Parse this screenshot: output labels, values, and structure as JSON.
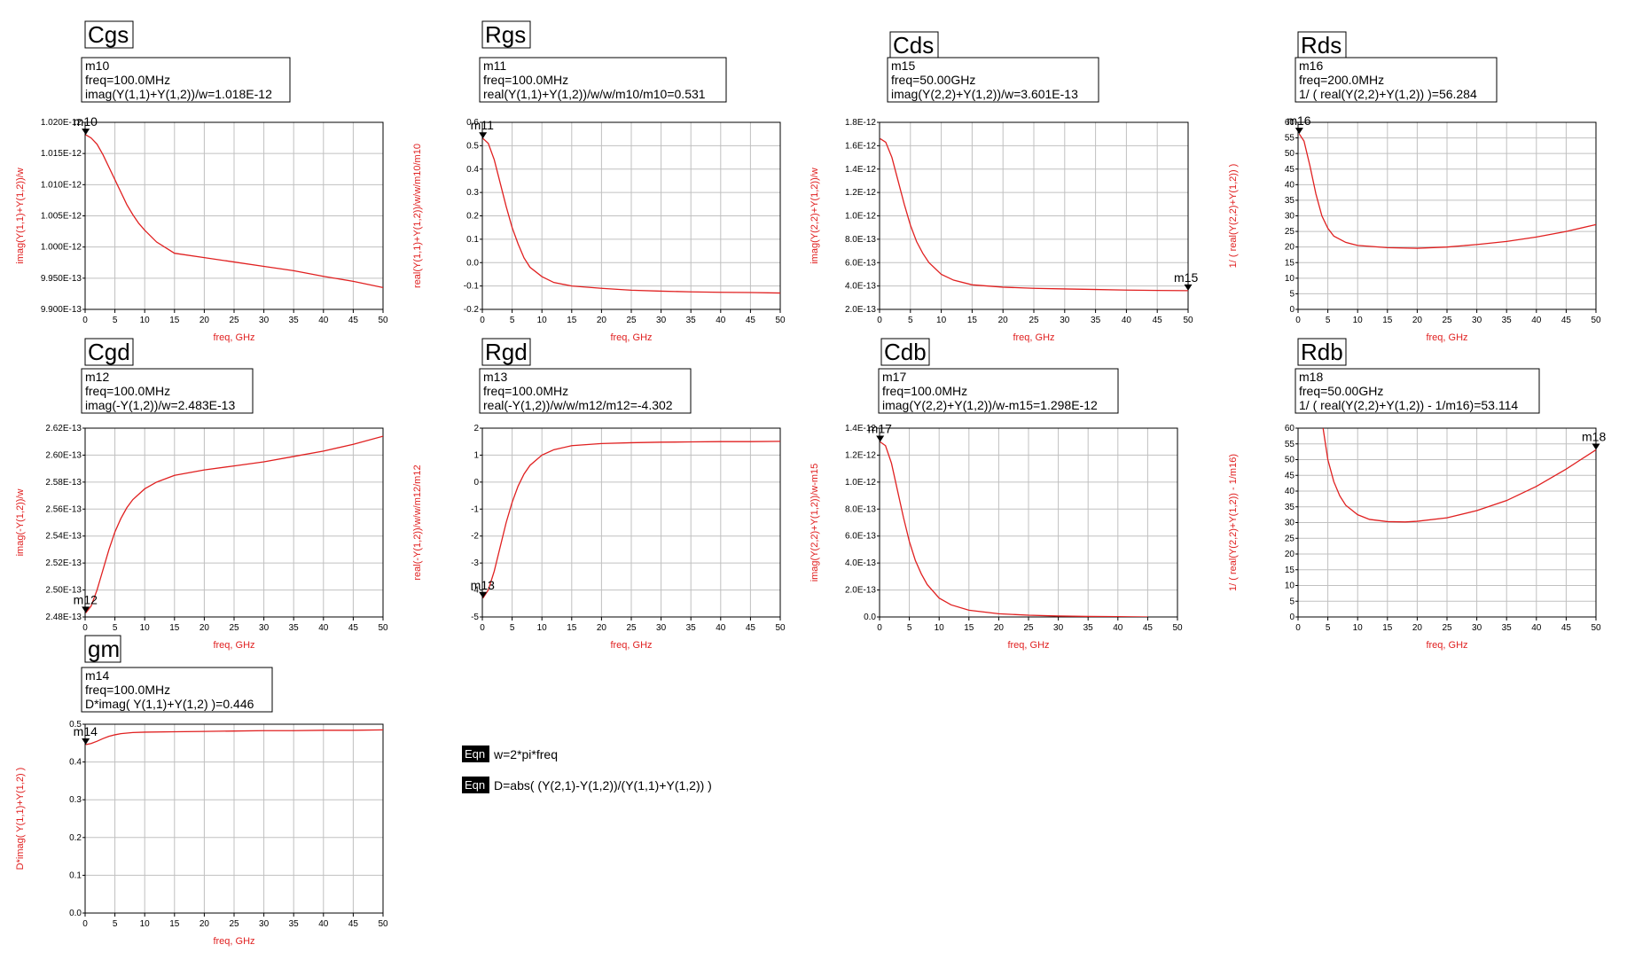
{
  "colors": {
    "curve": "#e02020",
    "grid": "#c0c0c0",
    "axis": "#000000",
    "label": "#e02020"
  },
  "equations": [
    {
      "tag": "Eqn",
      "text": "w=2*pi*freq"
    },
    {
      "tag": "Eqn",
      "text": "D=abs( (Y(2,1)-Y(1,2))/(Y(1,1)+Y(1,2)) )"
    }
  ],
  "chart_data": [
    {
      "id": "cgs",
      "type": "line",
      "title": "Cgs",
      "marker_box": [
        "m10",
        "freq=100.0MHz",
        "imag(Y(1,1)+Y(1,2))/w=1.018E-12"
      ],
      "xlabel": "freq, GHz",
      "ylabel": "imag(Y(1,1)+Y(1,2))/w",
      "xlim": [
        0,
        50
      ],
      "xticks": [
        0,
        5,
        10,
        15,
        20,
        25,
        30,
        35,
        40,
        45,
        50
      ],
      "ylim": [
        9.9e-13,
        1.02e-12
      ],
      "yticks": [
        9.9e-13,
        9.95e-13,
        1e-12,
        1.005e-12,
        1.01e-12,
        1.015e-12,
        1.02e-12
      ],
      "ytick_labels": [
        "9.900E-13",
        "9.950E-13",
        "1.000E-12",
        "1.005E-12",
        "1.010E-12",
        "1.015E-12",
        "1.020E-12"
      ],
      "marker": {
        "name": "m10",
        "x": 0.1,
        "y": 1.018e-12
      },
      "series": [
        {
          "name": "Cgs",
          "x": [
            0.1,
            1,
            2,
            3,
            4,
            5,
            6,
            7,
            8,
            9,
            10,
            12,
            15,
            20,
            25,
            30,
            35,
            40,
            45,
            50
          ],
          "y": [
            1.018e-12,
            1.0175e-12,
            1.0165e-12,
            1.0148e-12,
            1.0128e-12,
            1.0108e-12,
            1.0088e-12,
            1.0068e-12,
            1.0052e-12,
            1.0038e-12,
            1.0027e-12,
            1.0008e-12,
            9.99e-13,
            9.983e-13,
            9.976e-13,
            9.969e-13,
            9.962e-13,
            9.953e-13,
            9.945e-13,
            9.935e-13
          ]
        }
      ]
    },
    {
      "id": "rgs",
      "type": "line",
      "title": "Rgs",
      "marker_box": [
        "m11",
        "freq=100.0MHz",
        "real(Y(1,1)+Y(1,2))/w/w/m10/m10=0.531"
      ],
      "xlabel": "freq, GHz",
      "ylabel": "real(Y(1,1)+Y(1,2))/w/w/m10/m10",
      "xlim": [
        0,
        50
      ],
      "xticks": [
        0,
        5,
        10,
        15,
        20,
        25,
        30,
        35,
        40,
        45,
        50
      ],
      "ylim": [
        -0.2,
        0.6
      ],
      "yticks": [
        -0.2,
        -0.1,
        0.0,
        0.1,
        0.2,
        0.3,
        0.4,
        0.5,
        0.6
      ],
      "ytick_labels": [
        "-0.2",
        "-0.1",
        "0.0",
        "0.1",
        "0.2",
        "0.3",
        "0.4",
        "0.5",
        "0.6"
      ],
      "marker": {
        "name": "m11",
        "x": 0.1,
        "y": 0.531
      },
      "series": [
        {
          "name": "Rgs",
          "x": [
            0.1,
            1,
            2,
            3,
            4,
            5,
            6,
            7,
            8,
            10,
            12,
            15,
            20,
            25,
            30,
            35,
            40,
            45,
            50
          ],
          "y": [
            0.531,
            0.51,
            0.44,
            0.34,
            0.24,
            0.15,
            0.08,
            0.02,
            -0.02,
            -0.06,
            -0.085,
            -0.1,
            -0.11,
            -0.118,
            -0.122,
            -0.125,
            -0.127,
            -0.128,
            -0.13
          ]
        }
      ]
    },
    {
      "id": "cds",
      "type": "line",
      "title": "Cds",
      "marker_box": [
        "m15",
        "freq=50.00GHz",
        "imag(Y(2,2)+Y(1,2))/w=3.601E-13"
      ],
      "xlabel": "freq, GHz",
      "ylabel": "imag(Y(2,2)+Y(1,2))/w",
      "xlim": [
        0,
        50
      ],
      "xticks": [
        0,
        5,
        10,
        15,
        20,
        25,
        30,
        35,
        40,
        45,
        50
      ],
      "ylim": [
        2e-13,
        1.8e-12
      ],
      "yticks": [
        2e-13,
        4e-13,
        6e-13,
        8e-13,
        1e-12,
        1.2e-12,
        1.4e-12,
        1.6e-12,
        1.8e-12
      ],
      "ytick_labels": [
        "2.0E-13",
        "4.0E-13",
        "6.0E-13",
        "8.0E-13",
        "1.0E-12",
        "1.2E-12",
        "1.4E-12",
        "1.6E-12",
        "1.8E-12"
      ],
      "marker": {
        "name": "m15",
        "x": 50,
        "y": 3.601e-13
      },
      "series": [
        {
          "name": "Cds",
          "x": [
            0.1,
            1,
            2,
            3,
            4,
            5,
            6,
            7,
            8,
            10,
            12,
            15,
            20,
            25,
            30,
            35,
            40,
            45,
            50
          ],
          "y": [
            1.66e-12,
            1.63e-12,
            1.5e-12,
            1.3e-12,
            1.1e-12,
            9.2e-13,
            7.8e-13,
            6.8e-13,
            6e-13,
            5e-13,
            4.5e-13,
            4.1e-13,
            3.9e-13,
            3.8e-13,
            3.75e-13,
            3.7e-13,
            3.65e-13,
            3.62e-13,
            3.601e-13
          ]
        }
      ]
    },
    {
      "id": "rds",
      "type": "line",
      "title": "Rds",
      "marker_box": [
        "m16",
        "freq=200.0MHz",
        "1/ ( real(Y(2,2)+Y(1,2)) )=56.284"
      ],
      "xlabel": "freq, GHz",
      "ylabel": "1/ ( real(Y(2,2)+Y(1,2)) )",
      "xlim": [
        0,
        50
      ],
      "xticks": [
        0,
        5,
        10,
        15,
        20,
        25,
        30,
        35,
        40,
        45,
        50
      ],
      "ylim": [
        0,
        60
      ],
      "yticks": [
        0,
        5,
        10,
        15,
        20,
        25,
        30,
        35,
        40,
        45,
        50,
        55,
        60
      ],
      "ytick_labels": [
        "0",
        "5",
        "10",
        "15",
        "20",
        "25",
        "30",
        "35",
        "40",
        "45",
        "50",
        "55",
        "60"
      ],
      "marker": {
        "name": "m16",
        "x": 0.2,
        "y": 56.284
      },
      "series": [
        {
          "name": "Rds",
          "x": [
            0.2,
            1,
            2,
            3,
            4,
            5,
            6,
            8,
            10,
            15,
            20,
            25,
            30,
            35,
            40,
            45,
            50
          ],
          "y": [
            56.284,
            54,
            46,
            37,
            30,
            26,
            23.5,
            21.5,
            20.5,
            19.8,
            19.6,
            20,
            20.8,
            21.8,
            23.2,
            25,
            27.2
          ]
        }
      ]
    },
    {
      "id": "cgd",
      "type": "line",
      "title": "Cgd",
      "marker_box": [
        "m12",
        "freq=100.0MHz",
        "imag(-Y(1,2))/w=2.483E-13"
      ],
      "xlabel": "freq, GHz",
      "ylabel": "imag(-Y(1,2))/w",
      "xlim": [
        0,
        50
      ],
      "xticks": [
        0,
        5,
        10,
        15,
        20,
        25,
        30,
        35,
        40,
        45,
        50
      ],
      "ylim": [
        2.48e-13,
        2.62e-13
      ],
      "yticks": [
        2.48e-13,
        2.5e-13,
        2.52e-13,
        2.54e-13,
        2.56e-13,
        2.58e-13,
        2.6e-13,
        2.62e-13
      ],
      "ytick_labels": [
        "2.48E-13",
        "2.50E-13",
        "2.52E-13",
        "2.54E-13",
        "2.56E-13",
        "2.58E-13",
        "2.60E-13",
        "2.62E-13"
      ],
      "marker": {
        "name": "m12",
        "x": 0.1,
        "y": 2.483e-13
      },
      "series": [
        {
          "name": "Cgd",
          "x": [
            0.1,
            1,
            2,
            3,
            4,
            5,
            6,
            7,
            8,
            10,
            12,
            15,
            20,
            25,
            30,
            35,
            40,
            45,
            50
          ],
          "y": [
            2.483e-13,
            2.488e-13,
            2.5e-13,
            2.515e-13,
            2.53e-13,
            2.543e-13,
            2.553e-13,
            2.561e-13,
            2.567e-13,
            2.575e-13,
            2.58e-13,
            2.585e-13,
            2.589e-13,
            2.592e-13,
            2.595e-13,
            2.599e-13,
            2.603e-13,
            2.608e-13,
            2.614e-13
          ]
        }
      ]
    },
    {
      "id": "rgd",
      "type": "line",
      "title": "Rgd",
      "marker_box": [
        "m13",
        "freq=100.0MHz",
        "real(-Y(1,2))/w/w/m12/m12=-4.302"
      ],
      "xlabel": "freq, GHz",
      "ylabel": "real(-Y(1,2))/w/w/m12/m12",
      "xlim": [
        0,
        50
      ],
      "xticks": [
        0,
        5,
        10,
        15,
        20,
        25,
        30,
        35,
        40,
        45,
        50
      ],
      "ylim": [
        -5,
        2
      ],
      "yticks": [
        -5,
        -4,
        -3,
        -2,
        -1,
        0,
        1,
        2
      ],
      "ytick_labels": [
        "-5",
        "-4",
        "-3",
        "-2",
        "-1",
        "0",
        "1",
        "2"
      ],
      "marker": {
        "name": "m13",
        "x": 0.1,
        "y": -4.302
      },
      "series": [
        {
          "name": "Rgd",
          "x": [
            0.1,
            1,
            2,
            3,
            4,
            5,
            6,
            7,
            8,
            10,
            12,
            15,
            20,
            25,
            30,
            35,
            40,
            45,
            50
          ],
          "y": [
            -4.302,
            -4.0,
            -3.3,
            -2.4,
            -1.5,
            -0.75,
            -0.15,
            0.3,
            0.62,
            1.0,
            1.2,
            1.35,
            1.43,
            1.46,
            1.48,
            1.49,
            1.5,
            1.5,
            1.51
          ]
        }
      ]
    },
    {
      "id": "cdb",
      "type": "line",
      "title": "Cdb",
      "marker_box": [
        "m17",
        "freq=100.0MHz",
        "imag(Y(2,2)+Y(1,2))/w-m15=1.298E-12"
      ],
      "xlabel": "freq, GHz",
      "ylabel": "imag(Y(2,2)+Y(1,2))/w-m15",
      "xlim": [
        0,
        50
      ],
      "xticks": [
        0,
        5,
        10,
        15,
        20,
        25,
        30,
        35,
        40,
        45,
        50
      ],
      "ylim": [
        0,
        1.4e-12
      ],
      "yticks": [
        0,
        2e-13,
        4e-13,
        6e-13,
        8e-13,
        1e-12,
        1.2e-12,
        1.4e-12
      ],
      "ytick_labels": [
        "0.0",
        "2.0E-13",
        "4.0E-13",
        "6.0E-13",
        "8.0E-13",
        "1.0E-12",
        "1.2E-12",
        "1.4E-12"
      ],
      "marker": {
        "name": "m17",
        "x": 0.1,
        "y": 1.298e-12
      },
      "series": [
        {
          "name": "Cdb",
          "x": [
            0.1,
            1,
            2,
            3,
            4,
            5,
            6,
            7,
            8,
            10,
            12,
            15,
            20,
            25,
            30,
            35,
            40,
            45
          ],
          "y": [
            1.298e-12,
            1.27e-12,
            1.14e-12,
            9.4e-13,
            7.4e-13,
            5.6e-13,
            4.2e-13,
            3.2e-13,
            2.4e-13,
            1.4e-13,
            9e-14,
            5e-14,
            2.4e-14,
            1.3e-14,
            7e-15,
            4e-15,
            2e-15,
            0
          ]
        }
      ]
    },
    {
      "id": "rdb",
      "type": "line",
      "title": "Rdb",
      "marker_box": [
        "m18",
        "freq=50.00GHz",
        "1/ ( real(Y(2,2)+Y(1,2)) - 1/m16)=53.114"
      ],
      "xlabel": "freq, GHz",
      "ylabel": "1/ ( real(Y(2,2)+Y(1,2)) - 1/m16)",
      "xlim": [
        0,
        50
      ],
      "xticks": [
        0,
        5,
        10,
        15,
        20,
        25,
        30,
        35,
        40,
        45,
        50
      ],
      "ylim": [
        0,
        60
      ],
      "yticks": [
        0,
        5,
        10,
        15,
        20,
        25,
        30,
        35,
        40,
        45,
        50,
        55,
        60
      ],
      "ytick_labels": [
        "0",
        "5",
        "10",
        "15",
        "20",
        "25",
        "30",
        "35",
        "40",
        "45",
        "50",
        "55",
        "60"
      ],
      "marker": {
        "name": "m18",
        "x": 50,
        "y": 53.114
      },
      "series": [
        {
          "name": "Rdb",
          "x": [
            4.2,
            5,
            6,
            7,
            8,
            10,
            12,
            15,
            18,
            20,
            25,
            30,
            35,
            40,
            45,
            50
          ],
          "y": [
            60,
            50,
            43,
            38.5,
            35.5,
            32.5,
            31,
            30.3,
            30.2,
            30.4,
            31.5,
            33.8,
            37,
            41.5,
            47,
            53.114
          ]
        }
      ]
    },
    {
      "id": "gm",
      "type": "line",
      "title": "gm",
      "marker_box": [
        "m14",
        "freq=100.0MHz",
        "D*imag( Y(1,1)+Y(1,2) )=0.446"
      ],
      "xlabel": "freq, GHz",
      "ylabel": "D*imag( Y(1,1)+Y(1,2) )",
      "xlim": [
        0,
        50
      ],
      "xticks": [
        0,
        5,
        10,
        15,
        20,
        25,
        30,
        35,
        40,
        45,
        50
      ],
      "ylim": [
        0,
        0.5
      ],
      "yticks": [
        0,
        0.1,
        0.2,
        0.3,
        0.4,
        0.5
      ],
      "ytick_labels": [
        "0.0",
        "0.1",
        "0.2",
        "0.3",
        "0.4",
        "0.5"
      ],
      "marker": {
        "name": "m14",
        "x": 0.1,
        "y": 0.446
      },
      "series": [
        {
          "name": "gm",
          "x": [
            0.1,
            1,
            2,
            3,
            4,
            5,
            6,
            8,
            10,
            15,
            20,
            25,
            30,
            35,
            40,
            45,
            50
          ],
          "y": [
            0.446,
            0.449,
            0.455,
            0.462,
            0.468,
            0.472,
            0.475,
            0.478,
            0.479,
            0.48,
            0.481,
            0.482,
            0.483,
            0.483,
            0.484,
            0.484,
            0.485
          ]
        }
      ]
    }
  ]
}
